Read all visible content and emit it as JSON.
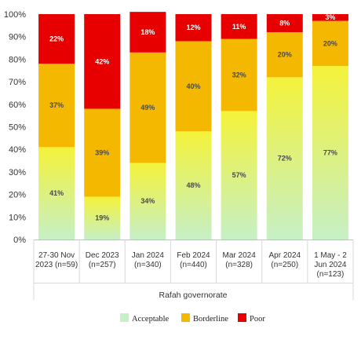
{
  "chart_data": {
    "type": "bar",
    "stacked": true,
    "percent_stacked": true,
    "categories": [
      [
        "27-30 Nov",
        "2023 (n=59)"
      ],
      [
        "Dec 2023",
        "(n=257)"
      ],
      [
        "Jan 2024",
        "(n=340)"
      ],
      [
        "Feb 2024",
        "(n=440)"
      ],
      [
        "Mar 2024",
        "(n=328)"
      ],
      [
        "Apr 2024",
        "(n=250)"
      ],
      [
        "1 May - 2",
        "Jun 2024",
        "(n=123)"
      ]
    ],
    "series": [
      {
        "name": "Acceptable",
        "values": [
          41,
          19,
          34,
          48,
          57,
          72,
          77
        ],
        "labels": [
          "41%",
          "19%",
          "34%",
          "48%",
          "57%",
          "72%",
          "77%"
        ]
      },
      {
        "name": "Borderline",
        "values": [
          37,
          39,
          49,
          40,
          32,
          20,
          20
        ],
        "labels": [
          "37%",
          "39%",
          "49%",
          "40%",
          "32%",
          "20%",
          "20%"
        ]
      },
      {
        "name": "Poor",
        "values": [
          22,
          42,
          18,
          12,
          11,
          8,
          3
        ],
        "labels": [
          "22%",
          "42%",
          "18%",
          "12%",
          "11%",
          "8%",
          "3%"
        ]
      }
    ],
    "yticks": [
      "0%",
      "10%",
      "20%",
      "30%",
      "40%",
      "50%",
      "60%",
      "70%",
      "80%",
      "90%",
      "100%"
    ],
    "ylim": [
      0,
      100
    ],
    "group_label": "Rafah governorate",
    "legend_position": "bottom-center",
    "grid": false,
    "colors": {
      "acceptable_bottom": "#c6f0c6",
      "acceptable_top": "#f4f23a",
      "borderline": "#f5b800",
      "poor": "#e60000",
      "label_dark": "#4a4a4a",
      "label_light": "#ffffff"
    }
  }
}
